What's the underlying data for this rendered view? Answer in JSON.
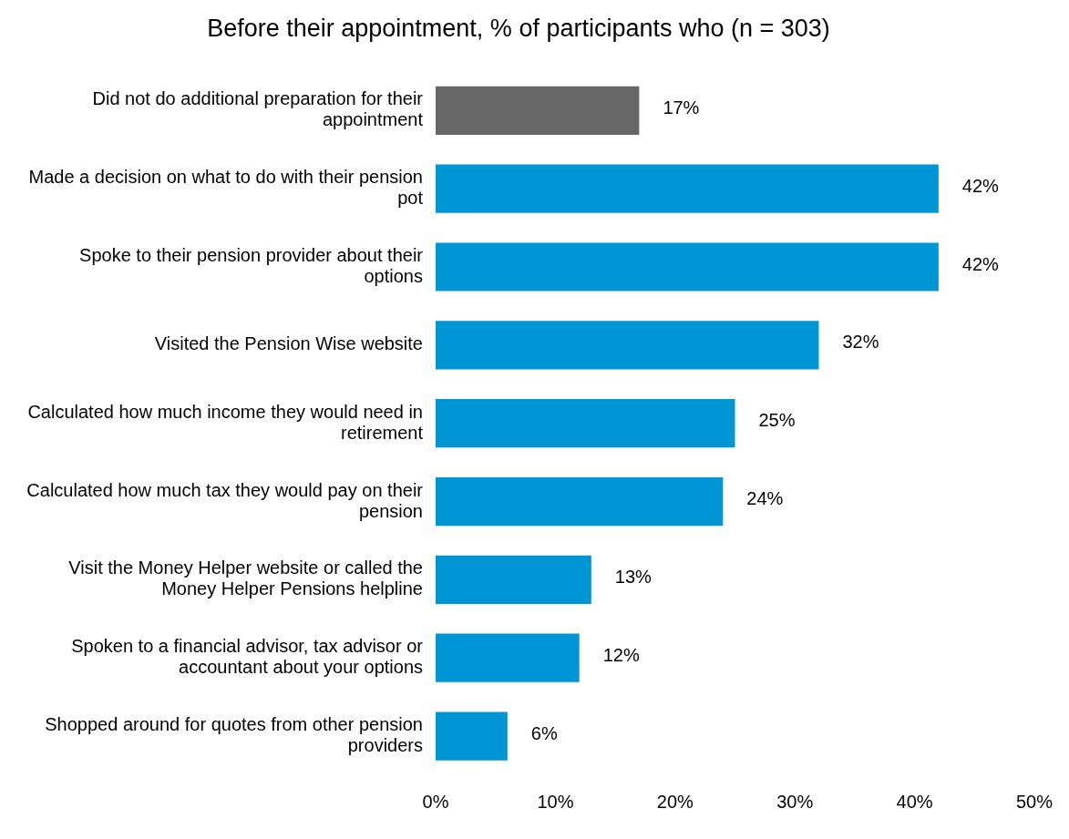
{
  "chart_data": {
    "type": "bar",
    "orientation": "horizontal",
    "title": "Before their appointment, % of participants who (n = 303)",
    "categories": [
      "Did not do additional preparation for their appointment",
      "Made a decision on what to do with their pension pot",
      "Spoke to their pension provider about their options",
      "Visited the Pension Wise website",
      "Calculated how much income they would need in retirement",
      "Calculated how much tax they would pay on their pension",
      "Visit the Money Helper website or called the Money Helper Pensions helpline",
      "Spoken to a financial advisor, tax advisor or accountant about your options",
      "Shopped around for quotes from other pension providers"
    ],
    "values": [
      17,
      42,
      42,
      32,
      25,
      24,
      13,
      12,
      6
    ],
    "colors": [
      "#676767",
      "#0096d6",
      "#0096d6",
      "#0096d6",
      "#0096d6",
      "#0096d6",
      "#0096d6",
      "#0096d6",
      "#0096d6"
    ],
    "value_labels": [
      "17%",
      "42%",
      "42%",
      "32%",
      "25%",
      "24%",
      "13%",
      "12%",
      "6%"
    ],
    "xlim": [
      0,
      50
    ],
    "xticks": [
      {
        "value": 0,
        "label": "0%"
      },
      {
        "value": 10,
        "label": "10%"
      },
      {
        "value": 20,
        "label": "20%"
      },
      {
        "value": 30,
        "label": "30%"
      },
      {
        "value": 40,
        "label": "40%"
      },
      {
        "value": 50,
        "label": "50%"
      }
    ],
    "grid": false,
    "legend": false
  }
}
